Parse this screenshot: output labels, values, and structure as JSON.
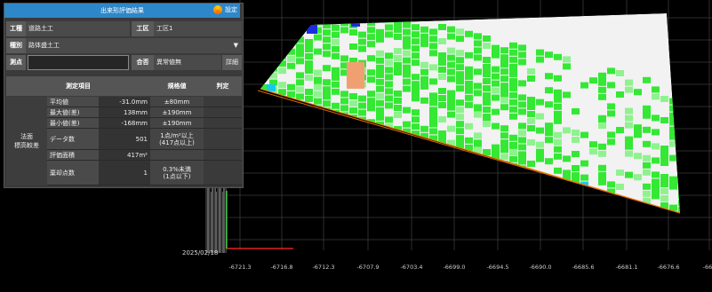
{
  "window": {
    "title": "出来形評価結果",
    "settings_label": "設定"
  },
  "form": {
    "kousyu_label": "工種",
    "kousyu_value": "道路土工",
    "kouku_label": "工区",
    "kouku_value": "工区1",
    "shubetsu_label": "種別",
    "shubetsu_value": "路体盛土工",
    "sokuten_label": "測点",
    "sokuten_value": "",
    "gouhi_label": "合否",
    "gouhi_value": "異常値無",
    "detail_button": "詳細"
  },
  "table": {
    "headers": [
      "測定項目",
      "規格値",
      "判定"
    ],
    "group_label": "法面\n標高較差",
    "rows": [
      {
        "item": "平均値",
        "value": "-31.0mm",
        "standard": "±80mm",
        "judge": ""
      },
      {
        "item": "最大値(差)",
        "value": "138mm",
        "standard": "±190mm",
        "judge": ""
      },
      {
        "item": "最小値(差)",
        "value": "-168mm",
        "standard": "±190mm",
        "judge": ""
      },
      {
        "item": "データ数",
        "value": "501",
        "standard": "1点/m²以上\n(417点以上)",
        "judge": ""
      },
      {
        "item": "評価面積",
        "value": "417m²",
        "standard": "",
        "judge": ""
      },
      {
        "item": "棄却点数",
        "value": "1",
        "standard": "0.3%未満\n(1点以下)",
        "judge": ""
      }
    ]
  },
  "axis": {
    "x_ticks": [
      "-6721.3",
      "-6716.8",
      "-6712.3",
      "-6707.9",
      "-6703.4",
      "-6699.0",
      "-6694.5",
      "-6690.0",
      "-6685.6",
      "-6681.1",
      "-6676.6",
      "-667"
    ]
  },
  "colors": {
    "header_blue": "#2e87c9",
    "heat_white": "#f2f2f2",
    "heat_green": "#34e834",
    "heat_light_green": "#8ff28f",
    "heat_cyan": "#15c8f0",
    "heat_blue": "#1a2de0",
    "heat_orange": "#f0a070",
    "edge_orange": "#ff8a00"
  }
}
